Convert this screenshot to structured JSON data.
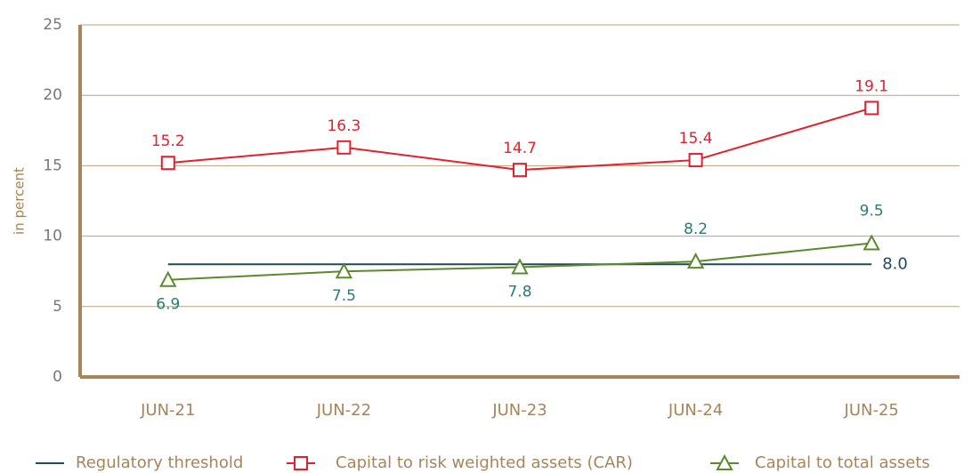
{
  "chart_data": {
    "type": "line",
    "y_label": "in percent",
    "categories": [
      "JUN-21",
      "JUN-22",
      "JUN-23",
      "JUN-24",
      "JUN-25"
    ],
    "series": [
      {
        "name": "Regulatory threshold",
        "color": "#1d4b57",
        "marker": "none",
        "values": [
          8,
          8,
          8,
          8,
          8
        ],
        "value_labels": [
          null,
          null,
          null,
          null,
          "8.0"
        ]
      },
      {
        "name": "Capital to risk weighted assets (CAR)",
        "color": "#e3202b",
        "marker": "square",
        "values": [
          15.2,
          16.3,
          14.7,
          15.4,
          19.1
        ]
      },
      {
        "name": "Capital to total assets",
        "color": "#5b8a2c",
        "label_color": "#2b7a78",
        "marker": "triangle",
        "values": [
          6.9,
          7.5,
          7.8,
          8.2,
          9.5
        ]
      }
    ],
    "ylim": [
      0,
      25
    ],
    "yticks": [
      0,
      5,
      10,
      15,
      20,
      25
    ],
    "grid": true,
    "legend": "bottom"
  }
}
